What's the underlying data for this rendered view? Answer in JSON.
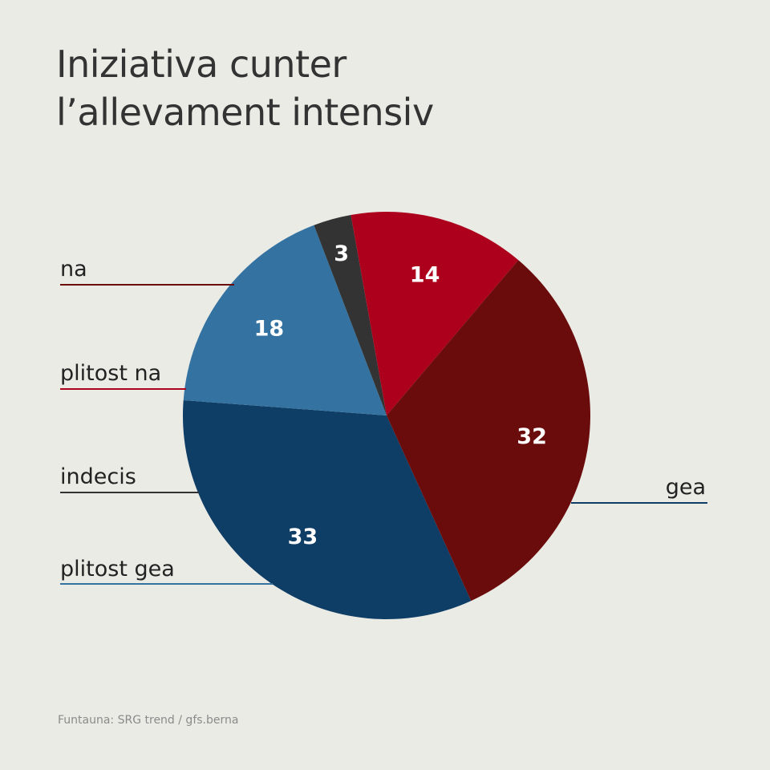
{
  "title_lines": [
    "Iniziativa cunter",
    "l’allevament intensiv"
  ],
  "source": "Funtauna: SRG trend / gfs.berna",
  "chart_data": {
    "type": "pie",
    "title": "Iniziativa cunter l’allevament intensiv",
    "slices": [
      {
        "label": "gea",
        "value": 33,
        "value_label": "33",
        "color": "#0e3d66"
      },
      {
        "label": "plitost gea",
        "value": 18,
        "value_label": "18",
        "color": "#3473a1"
      },
      {
        "label": "indecis",
        "value": 3,
        "value_label": "3",
        "color": "#333333"
      },
      {
        "label": "plitost na",
        "value": 14,
        "value_label": "14",
        "color": "#ad001d"
      },
      {
        "label": "na",
        "value": 32,
        "value_label": "32",
        "color": "#6a0b0c"
      }
    ],
    "legend": "side labels with leader lines"
  }
}
